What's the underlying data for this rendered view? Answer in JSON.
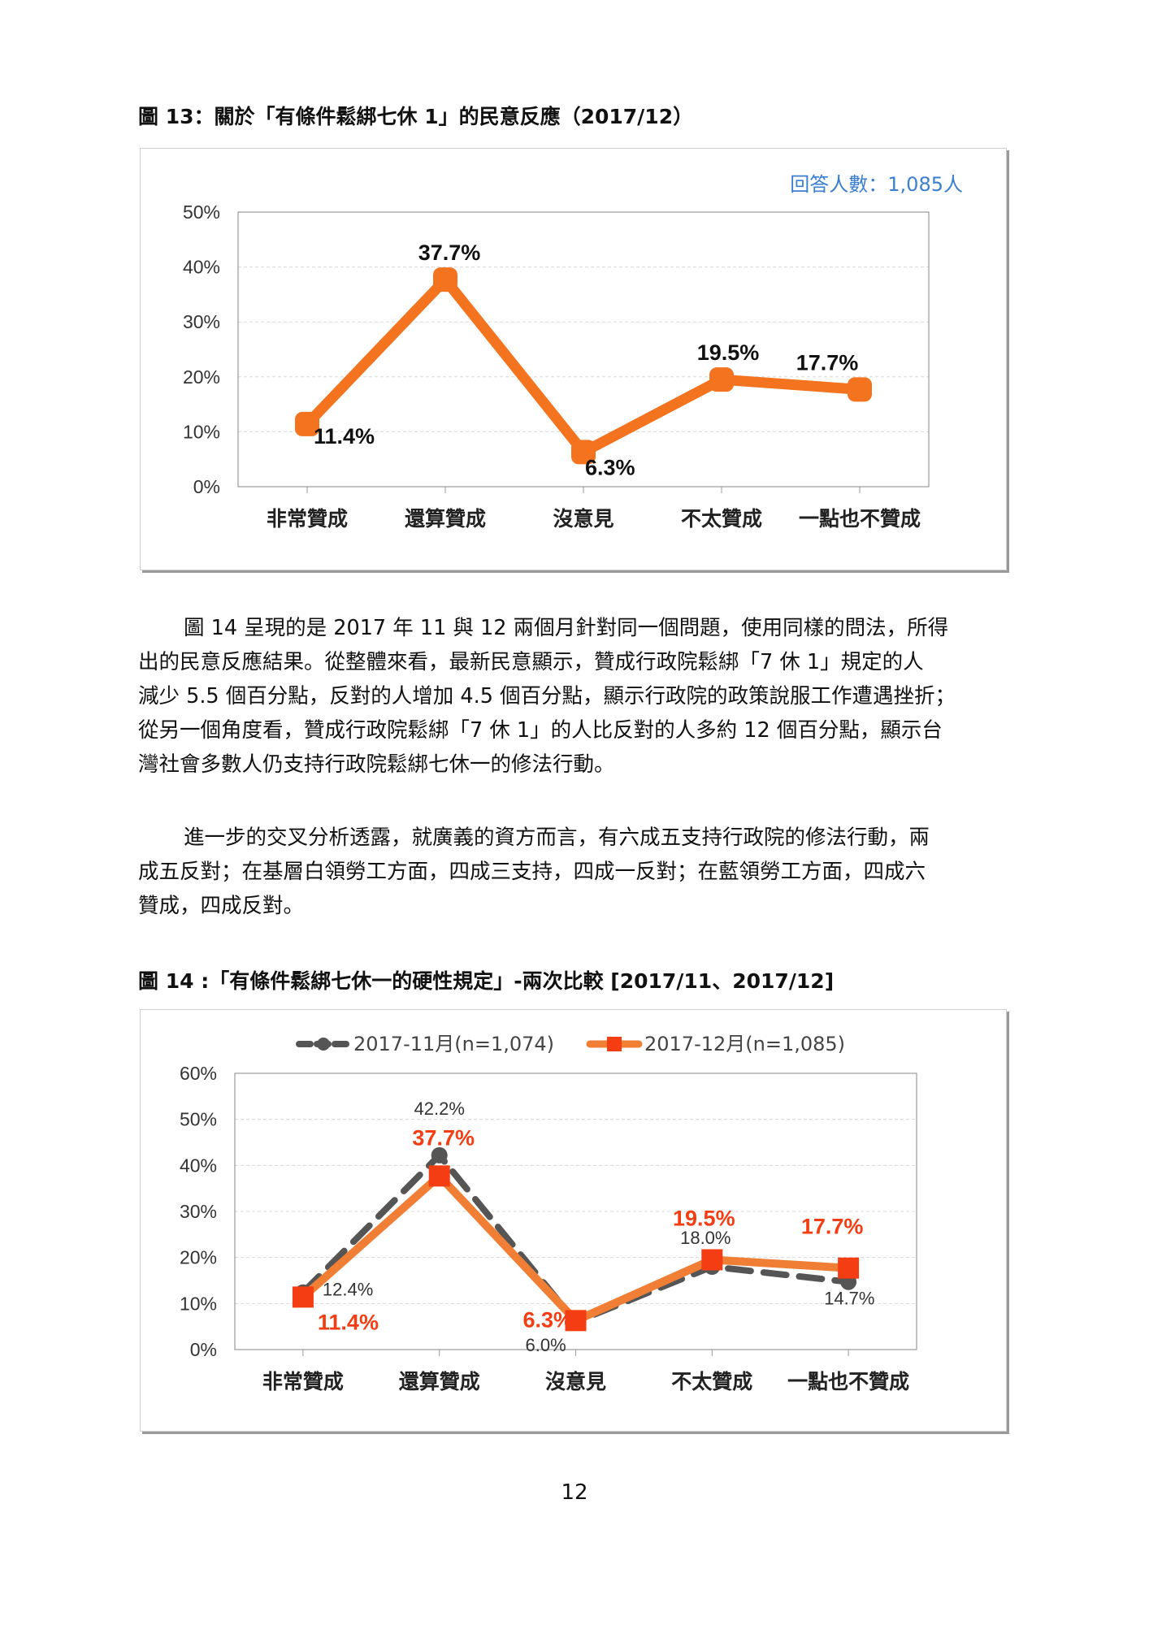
{
  "figure13": {
    "title": "圖 13：關於「有條件鬆綁七休 1」的民意反應（2017/12）",
    "respondents": "回答人數：1,085人",
    "accent_color": "#f4731f",
    "respondents_color": "#3a7fd0"
  },
  "paragraph1": [
    "圖 14 呈現的是 2017 年 11 與 12 兩個月針對同一個問題，使用同樣的問法，所得",
    "出的民意反應結果。從整體來看，最新民意顯示，贊成行政院鬆綁「7 休 1」規定的人",
    "減少 5.5 個百分點，反對的人增加 4.5 個百分點，顯示行政院的政策說服工作遭遇挫折；",
    "從另一個角度看，贊成行政院鬆綁「7 休 1」的人比反對的人多約 12 個百分點，顯示台",
    "灣社會多數人仍支持行政院鬆綁七休一的修法行動。"
  ],
  "paragraph2": [
    "進一步的交叉分析透露，就廣義的資方而言，有六成五支持行政院的修法行動，兩",
    "成五反對；在基層白領勞工方面，四成三支持，四成一反對；在藍領勞工方面，四成六",
    "贊成，四成反對。"
  ],
  "figure14": {
    "title": "圖 14 :「有條件鬆綁七休一的硬性規定」-兩次比較  [2017/11、2017/12]",
    "nov_color": "#555555",
    "dec_color": "#f07f35",
    "dec_marker_color": "#f43d12"
  },
  "page_number": "12",
  "chart_data": [
    {
      "type": "line",
      "title": "圖 13：關於「有條件鬆綁七休 1」的民意反應（2017/12）",
      "annotation": "回答人數：1,085人",
      "categories": [
        "非常贊成",
        "還算贊成",
        "沒意見",
        "不太贊成",
        "一點也不贊成"
      ],
      "series": [
        {
          "name": "2017/12",
          "values": [
            11.4,
            37.7,
            6.3,
            19.5,
            17.7
          ],
          "labels": [
            "11.4%",
            "37.7%",
            "6.3%",
            "19.5%",
            "17.7%"
          ]
        }
      ],
      "y_ticks": [
        "0%",
        "10%",
        "20%",
        "30%",
        "40%",
        "50%"
      ],
      "ylim": [
        0,
        50
      ],
      "grid": true
    },
    {
      "type": "line",
      "title": "圖 14 :「有條件鬆綁七休一的硬性規定」-兩次比較  [2017/11、2017/12]",
      "categories": [
        "非常贊成",
        "還算贊成",
        "沒意見",
        "不太贊成",
        "一點也不贊成"
      ],
      "series": [
        {
          "name": "2017-11月(n=1,074)",
          "values": [
            12.4,
            42.2,
            6.0,
            18.0,
            14.7
          ],
          "labels": [
            "12.4%",
            "42.2%",
            "6.0%",
            "18.0%",
            "14.7%"
          ]
        },
        {
          "name": "2017-12月(n=1,085)",
          "values": [
            11.4,
            37.7,
            6.3,
            19.5,
            17.7
          ],
          "labels": [
            "11.4%",
            "37.7%",
            "6.3%",
            "19.5%",
            "17.7%"
          ]
        }
      ],
      "y_ticks": [
        "0%",
        "10%",
        "20%",
        "30%",
        "40%",
        "50%",
        "60%"
      ],
      "ylim": [
        0,
        60
      ],
      "grid": true,
      "legend": "top"
    }
  ]
}
